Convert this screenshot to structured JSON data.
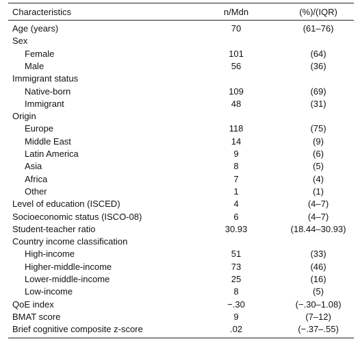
{
  "table": {
    "header": [
      "Characteristics",
      "n/Mdn",
      "(%)/(IQR)"
    ],
    "rows": [
      {
        "label": "Age (years)",
        "n": "70",
        "pct": "(61–76)"
      },
      {
        "label": "Sex",
        "rows": [
          {
            "label": "Female",
            "n": "101",
            "pct": "(64)"
          },
          {
            "label": "Male",
            "n": "56",
            "pct": "(36)"
          }
        ]
      },
      {
        "label": "Immigrant status",
        "rows": [
          {
            "label": "Native-born",
            "n": "109",
            "pct": "(69)"
          },
          {
            "label": "Immigrant",
            "n": "48",
            "pct": "(31)"
          }
        ]
      },
      {
        "label": "Origin",
        "rows": [
          {
            "label": "Europe",
            "n": "118",
            "pct": "(75)"
          },
          {
            "label": "Middle East",
            "n": "14",
            "pct": "(9)"
          },
          {
            "label": "Latin America",
            "n": "9",
            "pct": "(6)"
          },
          {
            "label": "Asia",
            "n": "8",
            "pct": "(5)"
          },
          {
            "label": "Africa",
            "n": "7",
            "pct": "(4)"
          },
          {
            "label": "Other",
            "n": "1",
            "pct": "(1)"
          }
        ]
      },
      {
        "label": "Level of education (ISCED)",
        "n": "4",
        "pct": "(4–7)"
      },
      {
        "label": "Socioeconomic status (ISCO-08)",
        "n": "6",
        "pct": "(4–7)"
      },
      {
        "label": "Student-teacher ratio",
        "n": "30.93",
        "pct": "(18.44–30.93)"
      },
      {
        "label": "Country income classification",
        "rows": [
          {
            "label": "High-income",
            "n": "51",
            "pct": "(33)"
          },
          {
            "label": "Higher-middle-income",
            "n": "73",
            "pct": "(46)"
          },
          {
            "label": "Lower-middle-income",
            "n": "25",
            "pct": "(16)"
          },
          {
            "label": "Low-income",
            "n": "8",
            "pct": "(5)"
          }
        ]
      },
      {
        "label": "QoE index",
        "n": "−.30",
        "pct": "(−.30–1.08)"
      },
      {
        "label": "BMAT score",
        "n": "9",
        "pct": "(7–12)"
      },
      {
        "label": "Brief cognitive composite z-score",
        "n": ".02",
        "pct": "(−.37–.55)"
      }
    ]
  }
}
